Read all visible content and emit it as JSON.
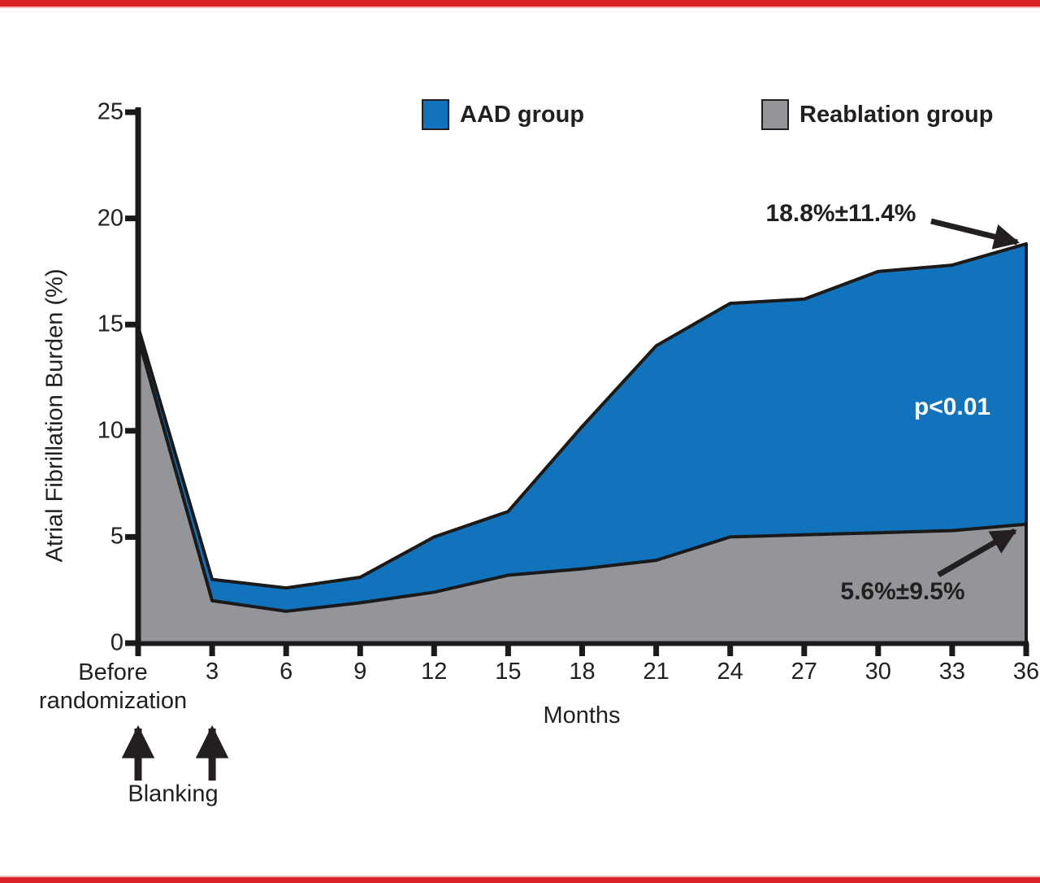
{
  "figure": {
    "background": "#FFFFFF",
    "border_color": "#DC2127",
    "axis_color": "#1A1A1A",
    "text_color": "#231F20"
  },
  "chart_data": {
    "type": "area",
    "title": "",
    "xlabel": "Months",
    "ylabel": "Atrial Fibrillation Burden (%)",
    "grid": false,
    "legend_position": "top",
    "ylim": [
      0,
      25
    ],
    "y_ticks": [
      0,
      5,
      10,
      15,
      20,
      25
    ],
    "x_months": [
      0,
      3,
      6,
      9,
      12,
      15,
      18,
      21,
      24,
      27,
      30,
      33,
      36
    ],
    "x_tick_labels": [
      "Before randomization",
      "3",
      "6",
      "9",
      "12",
      "15",
      "18",
      "21",
      "24",
      "27",
      "30",
      "33",
      "36"
    ],
    "x_first_tick_lines": [
      "Before",
      "randomization"
    ],
    "series": [
      {
        "name": "AAD group",
        "color": "#1173BC",
        "values": [
          14.9,
          3.0,
          2.6,
          3.1,
          5.0,
          6.2,
          10.2,
          14.0,
          16.0,
          16.2,
          17.5,
          17.8,
          18.8
        ]
      },
      {
        "name": "Reablation group",
        "color": "#939598",
        "values": [
          14.4,
          2.0,
          1.5,
          1.9,
          2.4,
          3.2,
          3.5,
          3.9,
          5.0,
          5.1,
          5.2,
          5.3,
          5.6
        ]
      }
    ],
    "annotations": [
      {
        "text": "18.8%±11.4%",
        "series": "AAD group",
        "at_month": 36
      },
      {
        "text": "5.6%±9.5%",
        "series": "Reablation group",
        "at_month": 36
      },
      {
        "text": "p<0.01",
        "location": "inside blue area, right side"
      },
      {
        "text": "Blanking",
        "location": "below x-axis, arrows at month 0 and month 3"
      }
    ]
  }
}
